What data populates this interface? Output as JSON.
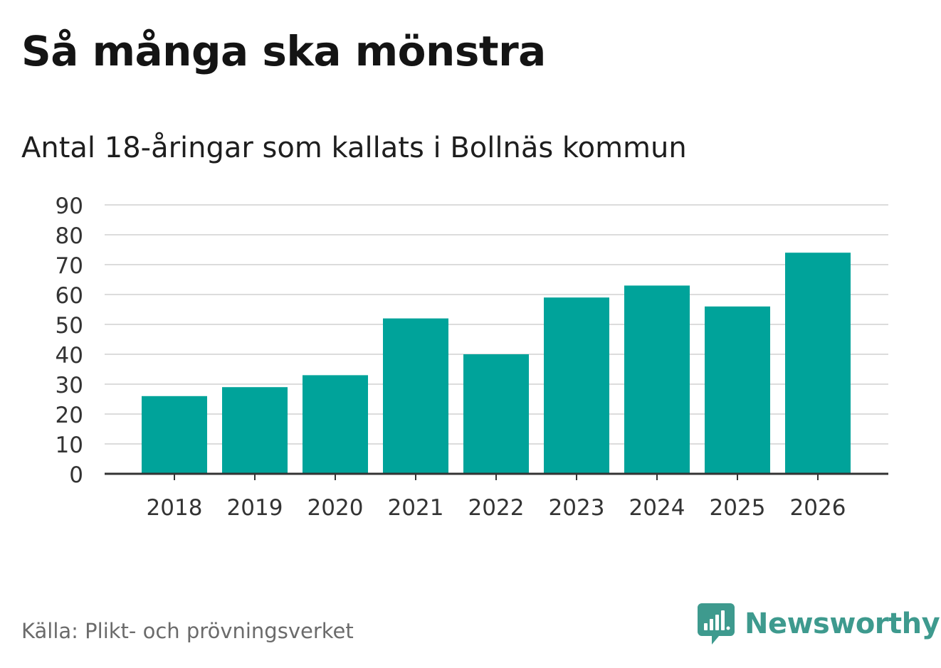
{
  "chart_data": {
    "type": "bar",
    "title": "Så många ska mönstra",
    "subtitle": "Antal 18-åringar som kallats i Bollnäs kommun",
    "categories": [
      "2018",
      "2019",
      "2020",
      "2021",
      "2022",
      "2023",
      "2024",
      "2025",
      "2026"
    ],
    "values": [
      26,
      29,
      33,
      52,
      40,
      59,
      63,
      56,
      74
    ],
    "yticks": [
      "0",
      "10",
      "20",
      "30",
      "40",
      "50",
      "60",
      "70",
      "80",
      "90"
    ],
    "ylim": [
      0,
      90
    ],
    "xlabel": "",
    "ylabel": "",
    "grid": true,
    "bar_color": "#00a39a",
    "grid_color": "#dcdcdc",
    "axis_color": "#333333"
  },
  "footer": {
    "source": "Källa: Plikt- och prövningsverket",
    "brand": "Newsworthy",
    "brand_icon": "newsworthy-logo-icon",
    "brand_color": "#3e9a8e"
  }
}
